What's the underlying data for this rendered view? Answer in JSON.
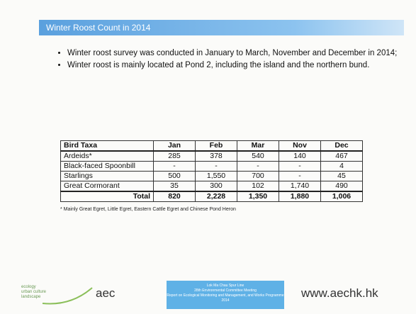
{
  "header": {
    "title": "Winter Roost Count in 2014"
  },
  "bullets": [
    "Winter roost survey was conducted in January to March, November and December in 2014;",
    "Winter roost is mainly located at Pond 2, including the island and the northern bund."
  ],
  "table": {
    "columns": [
      "Bird Taxa",
      "Jan",
      "Feb",
      "Mar",
      "Nov",
      "Dec"
    ],
    "rows": [
      [
        "Ardeids*",
        "285",
        "378",
        "540",
        "140",
        "467"
      ],
      [
        "Black-faced Spoonbill",
        "-",
        "-",
        "-",
        "-",
        "4"
      ],
      [
        "Starlings",
        "500",
        "1,550",
        "700",
        "-",
        "45"
      ],
      [
        "Great Cormorant",
        "35",
        "300",
        "102",
        "1,740",
        "490"
      ],
      [
        "Total",
        "820",
        "2,228",
        "1,350",
        "1,880",
        "1,006"
      ]
    ]
  },
  "footnote": "* Mainly Great Egret, Little Egret, Eastern Cattle Egret and Chinese Pond Heron",
  "footer": {
    "logo_lines": [
      "ecology",
      "urban culture",
      "landscape"
    ],
    "logo": "aec",
    "meeting": [
      "Lok Ma Chau Spur Line",
      "28th Environmental Committee Meeting",
      "Report on Ecological Monitoring and Management, and Works Programme 2014"
    ],
    "website": "www.aechk.hk"
  }
}
